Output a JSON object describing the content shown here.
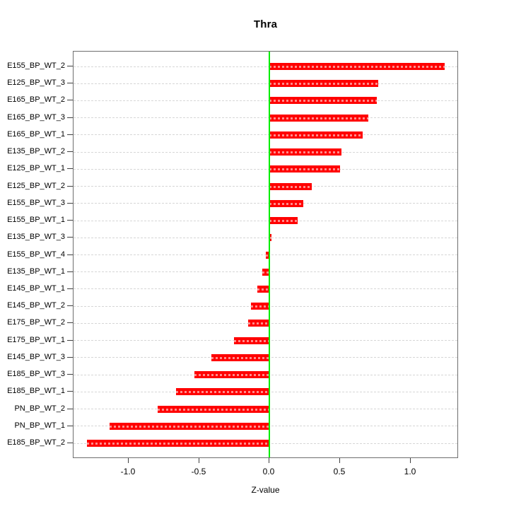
{
  "chart_data": {
    "type": "bar",
    "orientation": "horizontal",
    "title": "Thra",
    "xlabel": "Z-value",
    "categories": [
      "E155_BP_WT_2",
      "E125_BP_WT_3",
      "E165_BP_WT_2",
      "E165_BP_WT_3",
      "E165_BP_WT_1",
      "E135_BP_WT_2",
      "E125_BP_WT_1",
      "E125_BP_WT_2",
      "E155_BP_WT_3",
      "E155_BP_WT_1",
      "E135_BP_WT_3",
      "E155_BP_WT_4",
      "E135_BP_WT_1",
      "E145_BP_WT_1",
      "E145_BP_WT_2",
      "E175_BP_WT_2",
      "E175_BP_WT_1",
      "E145_BP_WT_3",
      "E185_BP_WT_3",
      "E185_BP_WT_1",
      "PN_BP_WT_2",
      "PN_BP_WT_1",
      "E185_BP_WT_2"
    ],
    "values": [
      1.24,
      0.77,
      0.76,
      0.7,
      0.66,
      0.51,
      0.5,
      0.3,
      0.24,
      0.2,
      0.015,
      -0.025,
      -0.05,
      -0.085,
      -0.13,
      -0.15,
      -0.25,
      -0.41,
      -0.53,
      -0.66,
      -0.79,
      -1.13,
      -1.29
    ],
    "xlim": [
      -1.39,
      1.34
    ],
    "xtick_values": [
      -1.0,
      -0.5,
      0.0,
      0.5,
      1.0
    ],
    "xtick_labels": [
      "-1.0",
      "-0.5",
      "0.0",
      "0.5",
      "1.0"
    ],
    "grid": true,
    "grid_style": "dashed",
    "legend": null,
    "colors": {
      "bar": "#ff0000",
      "bar_stripe": "rgba(255,255,255,0.55)",
      "zero_line": "#00ee00",
      "gridline": "#d6d6d6",
      "box": "#6f6f6f",
      "tick": "#404040",
      "text": "#000000"
    }
  }
}
